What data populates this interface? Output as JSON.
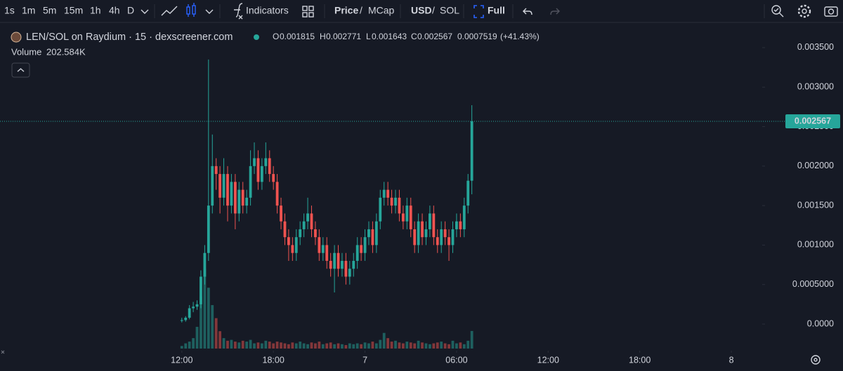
{
  "toolbar": {
    "intervals": [
      "1s",
      "1m",
      "5m",
      "15m",
      "1h",
      "4h",
      "D"
    ],
    "active_interval": 3,
    "indicators": "Indicators",
    "price": "Price",
    "price_slash": "/",
    "mcap": "MCap",
    "usd": "USD",
    "currency_slash": "/",
    "sol": "SOL",
    "full": "Full"
  },
  "chart_data": {
    "type": "candlestick",
    "title": "LEN/SOL on Raydium · 15 · dexscreener.com",
    "legend_labels": [
      "O",
      "H",
      "L",
      "C"
    ],
    "change": 0.0007519,
    "change_pct": "(+41.43%)",
    "up_color": "#26a69a",
    "down_color": "#ef5350",
    "x": [
      0,
      0.25,
      0.5,
      0.75,
      1,
      1.25,
      1.5,
      1.75,
      2,
      2.25,
      2.5,
      2.75,
      3,
      3.25,
      3.5,
      3.75,
      4,
      4.25,
      4.5,
      4.75,
      5,
      5.25,
      5.5,
      5.75,
      6,
      6.25,
      6.5,
      6.75,
      7,
      7.25,
      7.5,
      7.75,
      8,
      8.25,
      8.5,
      8.75,
      9,
      9.25,
      9.5,
      9.75,
      10,
      10.25,
      10.5,
      10.75,
      11,
      11.25,
      11.5,
      11.75,
      12,
      12.25,
      12.5,
      12.75,
      13,
      13.25,
      13.5,
      13.75,
      14,
      14.25,
      14.5,
      14.75,
      15,
      15.25,
      15.5,
      15.75,
      16,
      16.25,
      16.5,
      16.75,
      17,
      17.25,
      17.5,
      17.75,
      18,
      18.25,
      18.5,
      18.75,
      19
    ],
    "open": [
      4e-05,
      5e-05,
      8e-05,
      0.0002,
      0.00022,
      0.00025,
      0.0006,
      0.0009,
      0.0015,
      0.002,
      0.0019,
      0.0016,
      0.0019,
      0.0015,
      0.0018,
      0.0014,
      0.0017,
      0.0015,
      0.0016,
      0.002,
      0.0021,
      0.0018,
      0.002,
      0.0021,
      0.0019,
      0.0018,
      0.0015,
      0.0013,
      0.0011,
      0.001,
      0.0009,
      0.0011,
      0.0012,
      0.0013,
      0.0014,
      0.0012,
      0.0011,
      0.0009,
      0.001,
      0.0008,
      0.0007,
      0.0009,
      0.0007,
      0.0008,
      0.0006,
      0.0007,
      0.0008,
      0.001,
      0.0009,
      0.0011,
      0.0012,
      0.001,
      0.0013,
      0.0016,
      0.0017,
      0.0016,
      0.0015,
      0.0016,
      0.0014,
      0.0013,
      0.0015,
      0.0012,
      0.001,
      0.0013,
      0.0011,
      0.0012,
      0.0014,
      0.0011,
      0.001,
      0.0012,
      0.0011,
      0.001,
      0.0012,
      0.0013,
      0.0012,
      0.0015,
      0.001815
    ],
    "high": [
      8e-05,
      0.0001,
      0.00024,
      0.00028,
      0.0003,
      0.00068,
      0.001,
      0.00335,
      0.0024,
      0.0021,
      0.002,
      0.0021,
      0.002,
      0.0019,
      0.0019,
      0.0018,
      0.0018,
      0.0017,
      0.0022,
      0.0023,
      0.0022,
      0.0021,
      0.0023,
      0.0022,
      0.002,
      0.0019,
      0.0016,
      0.0014,
      0.0012,
      0.0011,
      0.0012,
      0.0013,
      0.0014,
      0.0016,
      0.0015,
      0.0013,
      0.0012,
      0.0011,
      0.0011,
      0.0009,
      0.001,
      0.001,
      0.0009,
      0.0009,
      0.0008,
      0.0009,
      0.0011,
      0.0011,
      0.0012,
      0.0013,
      0.0013,
      0.0014,
      0.0017,
      0.0018,
      0.0018,
      0.0017,
      0.0017,
      0.0017,
      0.0015,
      0.0016,
      0.0016,
      0.0013,
      0.0014,
      0.0014,
      0.0013,
      0.0015,
      0.0015,
      0.0012,
      0.0013,
      0.0013,
      0.0012,
      0.0013,
      0.0014,
      0.0014,
      0.0016,
      0.0019,
      0.002771
    ],
    "low": [
      2e-05,
      3e-05,
      6e-05,
      0.00015,
      0.00018,
      0.0002,
      0.0005,
      0.0008,
      0.0014,
      0.0017,
      0.0014,
      0.0015,
      0.0013,
      0.0014,
      0.0012,
      0.0013,
      0.0014,
      0.0014,
      0.0015,
      0.0019,
      0.0017,
      0.0017,
      0.0019,
      0.0018,
      0.0017,
      0.0014,
      0.0012,
      0.001,
      0.0008,
      0.0008,
      0.0008,
      0.001,
      0.0011,
      0.0012,
      0.0011,
      0.001,
      0.0008,
      0.0008,
      0.0007,
      0.0006,
      0.0004,
      0.0006,
      0.0006,
      0.0005,
      0.0005,
      0.0006,
      0.0007,
      0.0008,
      0.0008,
      0.001,
      0.0009,
      0.0009,
      0.0012,
      0.0015,
      0.0015,
      0.0014,
      0.0014,
      0.0013,
      0.0012,
      0.0012,
      0.0011,
      0.0009,
      0.0009,
      0.001,
      0.001,
      0.0011,
      0.001,
      0.0009,
      0.0009,
      0.001,
      0.0008,
      0.0009,
      0.0011,
      0.0011,
      0.0011,
      0.0014,
      0.001643
    ],
    "close": [
      5e-05,
      8e-05,
      0.0002,
      0.00022,
      0.00025,
      0.0006,
      0.0009,
      0.0015,
      0.002,
      0.0019,
      0.0016,
      0.0019,
      0.0015,
      0.0018,
      0.0014,
      0.0017,
      0.0015,
      0.0016,
      0.002,
      0.0021,
      0.0018,
      0.002,
      0.0021,
      0.0019,
      0.0018,
      0.0015,
      0.0013,
      0.0011,
      0.001,
      0.0009,
      0.0011,
      0.0012,
      0.0013,
      0.0014,
      0.0012,
      0.0011,
      0.0009,
      0.001,
      0.0008,
      0.0007,
      0.0009,
      0.0007,
      0.0008,
      0.0006,
      0.0007,
      0.0008,
      0.001,
      0.0009,
      0.0011,
      0.0012,
      0.001,
      0.0013,
      0.0016,
      0.0017,
      0.0016,
      0.0015,
      0.0016,
      0.0014,
      0.0013,
      0.0015,
      0.0012,
      0.001,
      0.0013,
      0.0011,
      0.0012,
      0.0014,
      0.0011,
      0.001,
      0.0012,
      0.0011,
      0.001,
      0.0012,
      0.0013,
      0.0012,
      0.0015,
      0.001815,
      0.002567
    ],
    "volume": {
      "name": "Volume",
      "last_label": "202.584K",
      "values": [
        30,
        60,
        80,
        120,
        250,
        600,
        920,
        700,
        500,
        350,
        200,
        120,
        90,
        100,
        80,
        70,
        90,
        80,
        100,
        60,
        70,
        60,
        90,
        80,
        60,
        80,
        70,
        60,
        50,
        70,
        60,
        80,
        60,
        50,
        70,
        60,
        80,
        50,
        60,
        70,
        50,
        60,
        50,
        40,
        60,
        50,
        60,
        50,
        70,
        60,
        80,
        60,
        100,
        180,
        120,
        80,
        90,
        70,
        60,
        80,
        70,
        60,
        90,
        70,
        60,
        50,
        60,
        70,
        80,
        60,
        50,
        90,
        60,
        70,
        50,
        90,
        202.584
      ]
    },
    "xlim": [
      -11.91,
      37.93
    ],
    "xticks": [
      {
        "value": 0,
        "label": "12:00"
      },
      {
        "value": 6,
        "label": "18:00"
      },
      {
        "value": 12,
        "label": "7"
      },
      {
        "value": 18,
        "label": "06:00"
      },
      {
        "value": 24,
        "label": "12:00"
      },
      {
        "value": 30,
        "label": "18:00"
      },
      {
        "value": 36,
        "label": "8"
      }
    ],
    "ylim": [
      -0.000337,
      0.003819
    ],
    "yticks": [
      {
        "value": 0,
        "label": "0.0000"
      },
      {
        "value": 0.0005,
        "label": "0.0005000"
      },
      {
        "value": 0.001,
        "label": "0.001000"
      },
      {
        "value": 0.0015,
        "label": "0.001500"
      },
      {
        "value": 0.002,
        "label": "0.002000"
      },
      {
        "value": 0.0025,
        "label": "0.002500"
      },
      {
        "value": 0.003,
        "label": "0.003000"
      },
      {
        "value": 0.0035,
        "label": "0.003500"
      }
    ],
    "grid": false
  }
}
